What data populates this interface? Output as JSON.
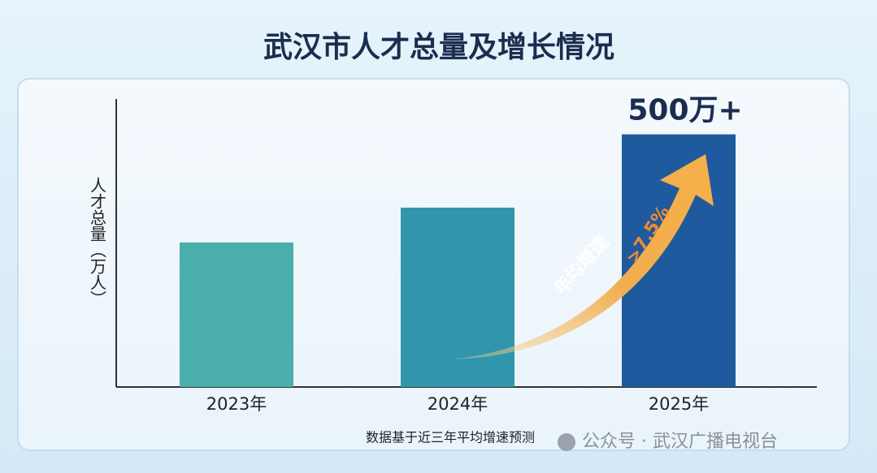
{
  "chart_data": {
    "type": "bar",
    "title": "武汉市人才总量及增长情况",
    "y_label": "人才总量（万人）",
    "categories": [
      "2023年",
      "2024年",
      "2025年"
    ],
    "values": [
      286,
      355,
      500
    ],
    "value_labels": [
      null,
      null,
      "500万+"
    ],
    "colors": [
      "#4aaeaa",
      "#3196ad",
      "#1f5a9e"
    ],
    "ylim": [
      0,
      570
    ],
    "annotations": [
      "年均增速",
      ">7.5%"
    ],
    "footnote": "数据基于近三年平均增速预测",
    "watermark": "公众号 · 武汉广播电视台"
  }
}
